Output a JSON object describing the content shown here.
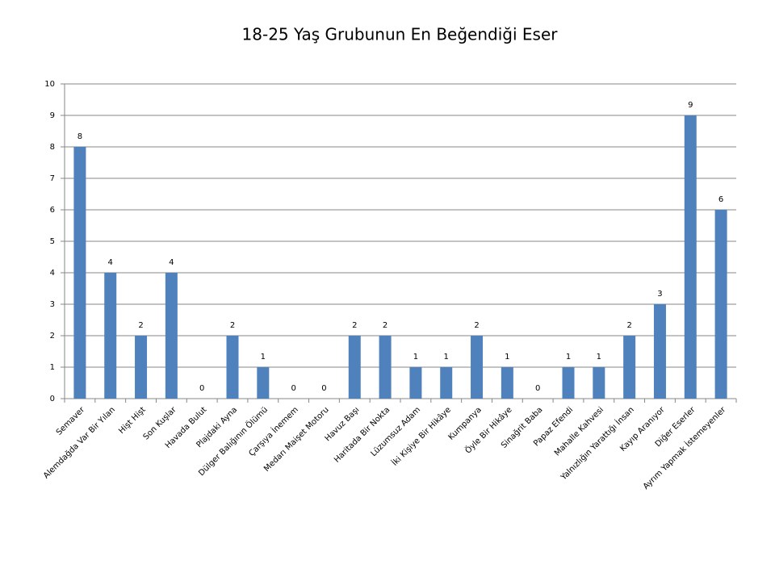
{
  "chart_data": {
    "type": "bar",
    "title": "18-25 Yaş Grubunun En Beğendiği Eser",
    "categories": [
      "Semaver",
      "Alemdağda Var Bir Yılan",
      "Hişt Hişt",
      "Son Kuşlar",
      "Havada Bulut",
      "Plajdaki Ayna",
      "Dülger Balığının Ölümü",
      "Çarşıya İnemem",
      "Medarı Maişet Motoru",
      "Havuz Başı",
      "Haritada Bir Nokta",
      "Lüzumsuz Adam",
      "İki Kişiye Bir Hikâye",
      "Kumpanya",
      "Öyle Bir Hikâye",
      "Sinağrit Baba",
      "Papaz Efendi",
      "Mahalle Kahvesi",
      "Yalnızlığın Yarattığı İnsan",
      "Kayıp Aranıyor",
      "Diğer Eserler",
      "Ayrım Yapmak İstemeyenler"
    ],
    "values": [
      8,
      4,
      2,
      4,
      0,
      2,
      1,
      0,
      0,
      2,
      2,
      1,
      1,
      2,
      1,
      0,
      1,
      1,
      2,
      3,
      9,
      6
    ],
    "color": "#4f81bd",
    "ylim": [
      0,
      10
    ],
    "yticks": [
      0,
      1,
      2,
      3,
      4,
      5,
      6,
      7,
      8,
      9,
      10
    ],
    "grid": true
  }
}
